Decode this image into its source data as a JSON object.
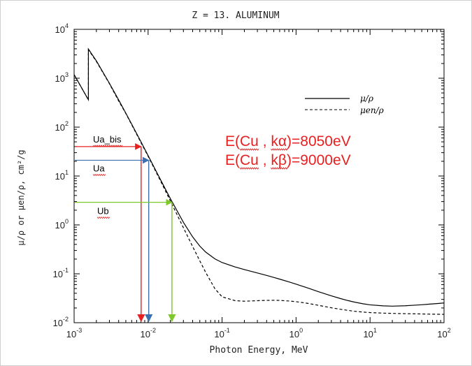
{
  "chart_data": {
    "type": "line",
    "title": "Z = 13.   ALUMINUM",
    "xlabel": "Photon Energy, MeV",
    "ylabel": "μ/ρ  or  μen/ρ,  cm²/g",
    "x_scale": "log",
    "y_scale": "log",
    "xlim": [
      0.001,
      100
    ],
    "ylim": [
      0.01,
      10000
    ],
    "x_ticks": [
      {
        "base": "10",
        "exp": "-3",
        "value": 0.001
      },
      {
        "base": "10",
        "exp": "-2",
        "value": 0.01
      },
      {
        "base": "10",
        "exp": "-1",
        "value": 0.1
      },
      {
        "base": "10",
        "exp": "0",
        "value": 1
      },
      {
        "base": "10",
        "exp": "1",
        "value": 10
      },
      {
        "base": "10",
        "exp": "2",
        "value": 100
      }
    ],
    "y_ticks": [
      {
        "base": "10",
        "exp": "-2",
        "value": 0.01
      },
      {
        "base": "10",
        "exp": "-1",
        "value": 0.1
      },
      {
        "base": "10",
        "exp": "0",
        "value": 1
      },
      {
        "base": "10",
        "exp": "1",
        "value": 10
      },
      {
        "base": "10",
        "exp": "2",
        "value": 100
      },
      {
        "base": "10",
        "exp": "3",
        "value": 1000
      },
      {
        "base": "10",
        "exp": "4",
        "value": 10000
      }
    ],
    "legend": {
      "placement": "top-right",
      "entries": [
        {
          "label": "μ/ρ",
          "style": "solid"
        },
        {
          "label": "μen/ρ",
          "style": "dashed"
        }
      ]
    },
    "series": [
      {
        "name": "μ/ρ",
        "style": "solid",
        "color": "#000000",
        "points": [
          [
            0.001,
            1185
          ],
          [
            0.0015,
            402
          ],
          [
            0.00156,
            362
          ],
          [
            0.00156,
            3957
          ],
          [
            0.002,
            2263
          ],
          [
            0.003,
            788
          ],
          [
            0.004,
            360
          ],
          [
            0.005,
            193
          ],
          [
            0.006,
            115
          ],
          [
            0.008,
            50.3
          ],
          [
            0.01,
            26.2
          ],
          [
            0.015,
            7.96
          ],
          [
            0.02,
            3.44
          ],
          [
            0.03,
            1.13
          ],
          [
            0.04,
            0.569
          ],
          [
            0.05,
            0.368
          ],
          [
            0.06,
            0.278
          ],
          [
            0.08,
            0.202
          ],
          [
            0.1,
            0.17
          ],
          [
            0.15,
            0.138
          ],
          [
            0.2,
            0.122
          ],
          [
            0.3,
            0.104
          ],
          [
            0.4,
            0.0928
          ],
          [
            0.5,
            0.0844
          ],
          [
            0.6,
            0.0778
          ],
          [
            0.8,
            0.0684
          ],
          [
            1,
            0.0615
          ],
          [
            1.25,
            0.055
          ],
          [
            1.5,
            0.0502
          ],
          [
            2,
            0.0432
          ],
          [
            3,
            0.0354
          ],
          [
            4,
            0.0311
          ],
          [
            5,
            0.0284
          ],
          [
            6,
            0.0266
          ],
          [
            8,
            0.0244
          ],
          [
            10,
            0.0232
          ],
          [
            15,
            0.0221
          ],
          [
            20,
            0.0218
          ],
          [
            30,
            0.0222
          ],
          [
            40,
            0.0228
          ],
          [
            50,
            0.0233
          ],
          [
            60,
            0.0238
          ],
          [
            80,
            0.0246
          ],
          [
            100,
            0.0253
          ]
        ]
      },
      {
        "name": "μen/ρ",
        "style": "dashed",
        "color": "#000000",
        "points": [
          [
            0.001,
            1183
          ],
          [
            0.0015,
            400
          ],
          [
            0.00156,
            360
          ],
          [
            0.00156,
            3829
          ],
          [
            0.002,
            2204
          ],
          [
            0.003,
            773
          ],
          [
            0.004,
            343
          ],
          [
            0.005,
            190
          ],
          [
            0.006,
            112
          ],
          [
            0.008,
            48.4
          ],
          [
            0.01,
            25.4
          ],
          [
            0.015,
            7.49
          ],
          [
            0.02,
            3.09
          ],
          [
            0.03,
            0.878
          ],
          [
            0.04,
            0.361
          ],
          [
            0.05,
            0.184
          ],
          [
            0.06,
            0.107
          ],
          [
            0.08,
            0.0495
          ],
          [
            0.1,
            0.0338
          ],
          [
            0.15,
            0.0282
          ],
          [
            0.2,
            0.0275
          ],
          [
            0.3,
            0.0282
          ],
          [
            0.4,
            0.0286
          ],
          [
            0.5,
            0.0287
          ],
          [
            0.6,
            0.0286
          ],
          [
            0.8,
            0.0278
          ],
          [
            1,
            0.0269
          ],
          [
            1.25,
            0.0257
          ],
          [
            1.5,
            0.0246
          ],
          [
            2,
            0.0227
          ],
          [
            3,
            0.0202
          ],
          [
            4,
            0.0188
          ],
          [
            5,
            0.0179
          ],
          [
            6,
            0.0172
          ],
          [
            8,
            0.0165
          ],
          [
            10,
            0.0161
          ],
          [
            15,
            0.0157
          ],
          [
            20,
            0.0155
          ],
          [
            30,
            0.0153
          ],
          [
            40,
            0.0152
          ],
          [
            50,
            0.0151
          ],
          [
            60,
            0.015
          ],
          [
            80,
            0.0149
          ],
          [
            100,
            0.0148
          ]
        ]
      }
    ],
    "annotations": {
      "energy_text": [
        {
          "parts": [
            "E(",
            "Cu",
            " , ",
            "kα",
            ")=8050eV"
          ],
          "color": "#e82020"
        },
        {
          "parts": [
            "E(",
            "Cu",
            " , ",
            "kβ",
            ")=9000eV"
          ],
          "color": "#e82020"
        }
      ],
      "markers": [
        {
          "label": "Ua_bis",
          "x": 0.00805,
          "y": 40,
          "color": "#e82020"
        },
        {
          "label": "Ua",
          "x": 0.0102,
          "y": 21,
          "color": "#3c6fb0"
        },
        {
          "label": "Ub",
          "x": 0.021,
          "y": 2.9,
          "color": "#7ec828"
        }
      ]
    }
  }
}
